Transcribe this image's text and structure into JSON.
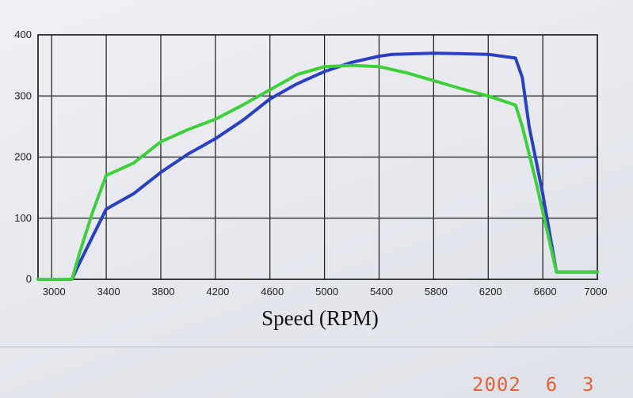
{
  "chart_data": {
    "type": "line",
    "title": "",
    "xlabel": "Speed (RPM)",
    "ylabel": "",
    "xlim": [
      2900,
      7000
    ],
    "ylim": [
      0,
      400
    ],
    "xticks": [
      "3000",
      "3400",
      "3800",
      "4200",
      "4600",
      "5000",
      "5400",
      "5800",
      "6200",
      "6600",
      "7000"
    ],
    "yticks": [
      "0",
      "100",
      "200",
      "300",
      "400"
    ],
    "grid": true,
    "series": [
      {
        "color": "#2b3fc4",
        "x": [
          2900,
          3150,
          3200,
          3300,
          3400,
          3600,
          3800,
          4000,
          4200,
          4400,
          4600,
          4800,
          5000,
          5200,
          5400,
          5500,
          5800,
          6000,
          6200,
          6400,
          6450,
          6500,
          6600,
          6700,
          7000
        ],
        "y": [
          0,
          0,
          25,
          70,
          115,
          140,
          175,
          205,
          230,
          260,
          295,
          320,
          340,
          355,
          365,
          368,
          370,
          369,
          368,
          362,
          330,
          250,
          140,
          12,
          12
        ]
      },
      {
        "color": "#3fcf3a",
        "x": [
          2900,
          3150,
          3200,
          3300,
          3400,
          3600,
          3800,
          4000,
          4200,
          4400,
          4600,
          4800,
          5000,
          5200,
          5400,
          5600,
          5800,
          6000,
          6200,
          6400,
          6450,
          6550,
          6700,
          7000
        ],
        "y": [
          0,
          0,
          40,
          110,
          170,
          190,
          225,
          245,
          262,
          285,
          310,
          335,
          348,
          350,
          348,
          338,
          325,
          312,
          300,
          285,
          250,
          160,
          12,
          12
        ]
      }
    ]
  },
  "date_stamp": "2002  6  3"
}
